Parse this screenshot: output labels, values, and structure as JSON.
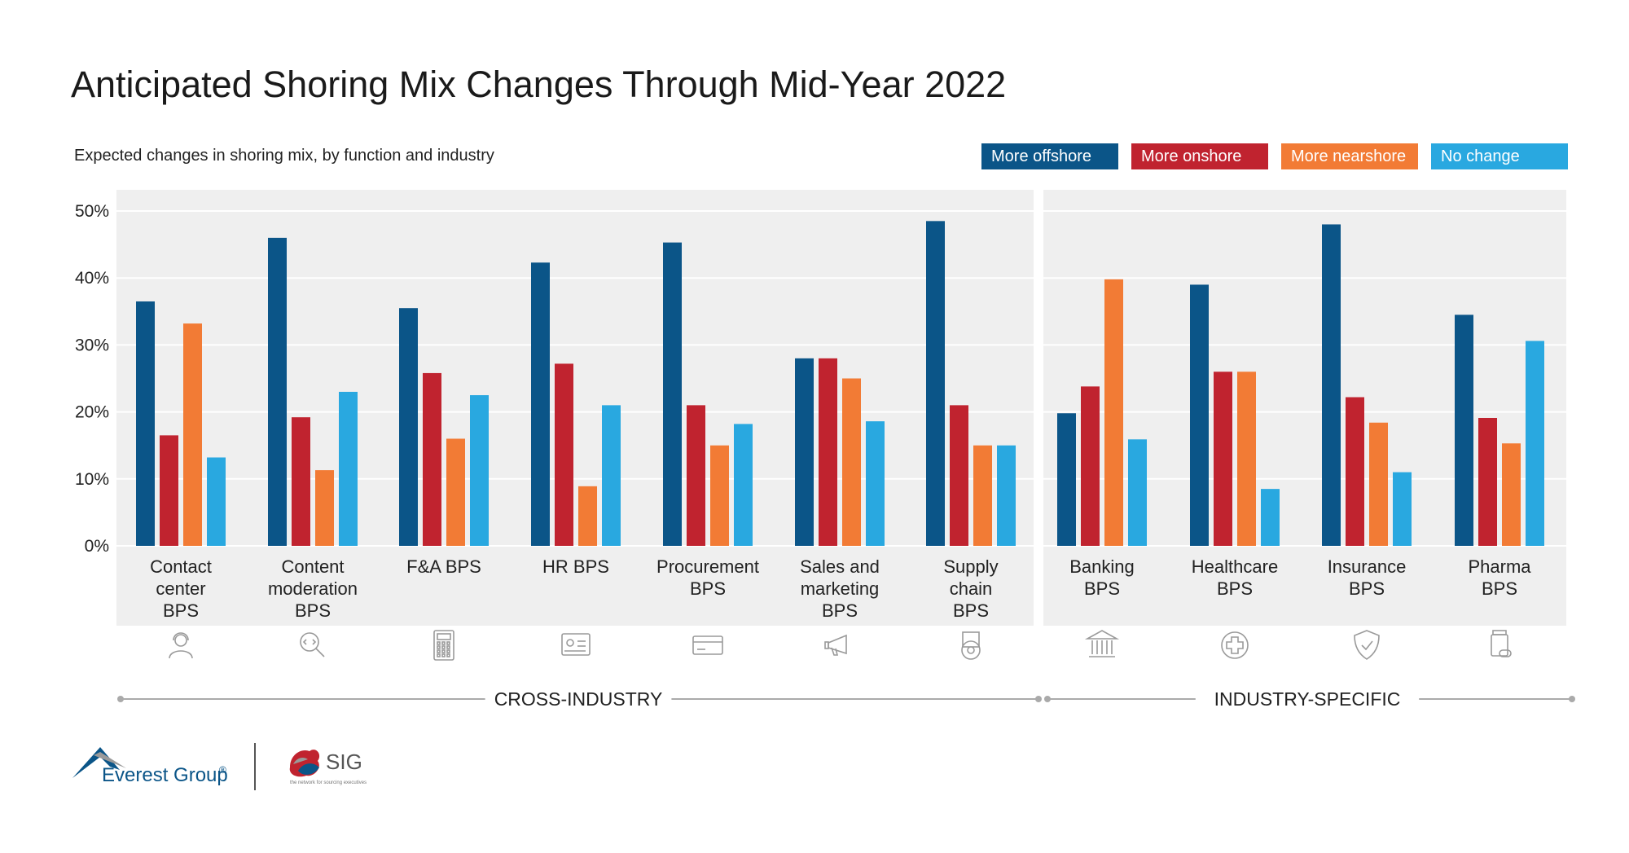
{
  "title": "Anticipated Shoring Mix Changes Through Mid-Year 2022",
  "subtitle": "Expected changes in shoring mix, by function and industry",
  "colors": {
    "offshore": "#0b5588",
    "onshore": "#c0232f",
    "nearshore": "#f27b35",
    "nochange": "#29a8e0",
    "panel": "#efefef",
    "grid": "#ffffff",
    "divider": "#aaaaaa",
    "icon": "#9a9a9a"
  },
  "legend": [
    {
      "label": "More offshore",
      "color": "#0b5588"
    },
    {
      "label": "More onshore",
      "color": "#c0232f"
    },
    {
      "label": "More nearshore",
      "color": "#f27b35"
    },
    {
      "label": "No change",
      "color": "#29a8e0"
    }
  ],
  "chart_data": {
    "type": "bar",
    "ylim": [
      0,
      50
    ],
    "yticks": [
      "0%",
      "10%",
      "20%",
      "30%",
      "40%",
      "50%"
    ],
    "grid": true,
    "legend_position": "top-right",
    "groups": [
      {
        "label": "CROSS-INDUSTRY",
        "categories": [
          {
            "label": [
              "Contact",
              "center",
              "BPS"
            ],
            "icon": "headset-person-icon"
          },
          {
            "label": [
              "Content",
              "moderation",
              "BPS"
            ],
            "icon": "code-magnifier-icon"
          },
          {
            "label": [
              "F&A BPS"
            ],
            "icon": "calculator-icon"
          },
          {
            "label": [
              "HR BPS"
            ],
            "icon": "id-card-icon"
          },
          {
            "label": [
              "Procurement",
              "BPS"
            ],
            "icon": "credit-card-icon"
          },
          {
            "label": [
              "Sales and",
              "marketing",
              "BPS"
            ],
            "icon": "megaphone-icon"
          },
          {
            "label": [
              "Supply",
              "chain",
              "BPS"
            ],
            "icon": "box-gear-icon"
          }
        ],
        "series": [
          {
            "name": "More offshore",
            "values": [
              36.5,
              46,
              35.5,
              42.3,
              45.3,
              28,
              48.5
            ]
          },
          {
            "name": "More onshore",
            "values": [
              16.5,
              19.2,
              25.8,
              27.2,
              21,
              28,
              21
            ]
          },
          {
            "name": "More nearshore",
            "values": [
              33.2,
              11.3,
              16,
              8.9,
              15,
              25,
              15
            ]
          },
          {
            "name": "No change",
            "values": [
              13.2,
              23,
              22.5,
              21,
              18.2,
              18.6,
              15
            ]
          }
        ]
      },
      {
        "label": "INDUSTRY-SPECIFIC",
        "categories": [
          {
            "label": [
              "Banking",
              "BPS"
            ],
            "icon": "bank-icon"
          },
          {
            "label": [
              "Healthcare",
              "BPS"
            ],
            "icon": "medical-cross-icon"
          },
          {
            "label": [
              "Insurance",
              "BPS"
            ],
            "icon": "shield-check-icon"
          },
          {
            "label": [
              "Pharma",
              "BPS"
            ],
            "icon": "pill-bottle-icon"
          }
        ],
        "series": [
          {
            "name": "More offshore",
            "values": [
              19.8,
              39,
              48,
              34.5
            ]
          },
          {
            "name": "More onshore",
            "values": [
              23.8,
              26,
              22.2,
              19.1
            ]
          },
          {
            "name": "More nearshore",
            "values": [
              39.8,
              26,
              18.4,
              15.3
            ]
          },
          {
            "name": "No change",
            "values": [
              15.9,
              8.5,
              11,
              30.6
            ]
          }
        ]
      }
    ]
  },
  "logos": {
    "everest": "Everest Group",
    "everest_mark": "®",
    "sig": "SIG",
    "sig_tagline": "the network for sourcing executives"
  }
}
